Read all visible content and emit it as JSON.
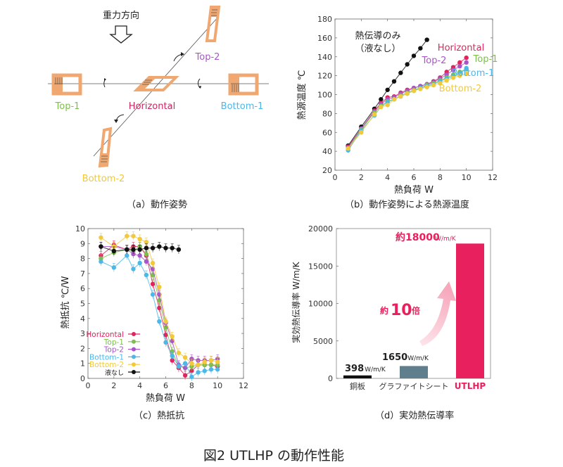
{
  "figure_title": "図2  UTLHP の動作性能",
  "colors": {
    "Horizontal": "#e0245e",
    "Top-1": "#7cc04a",
    "Top-2": "#a855c8",
    "Bottom-1": "#4cb8e8",
    "Bottom-2": "#f2c93a",
    "none": "#111111",
    "orange": "#f0a870",
    "bar_copper": "#111111",
    "bar_graphite": "#5f7f8c",
    "bar_utlhp": "#e8205e",
    "arrow": "#f7b8c8"
  },
  "panel_a": {
    "caption": "（a）動作姿勢",
    "gravity_label": "重力方向",
    "labels": {
      "top1": "Top-1",
      "top2": "Top-2",
      "horizontal": "Horizontal",
      "bottom1": "Bottom-1",
      "bottom2": "Bottom-2"
    }
  },
  "chart_data": [
    {
      "id": "b",
      "type": "line",
      "caption": "（b）動作姿勢による熱源温度",
      "xlabel": "熱負荷  W",
      "ylabel": "熱源温度  ℃",
      "xlim": [
        0,
        12
      ],
      "ylim": [
        20,
        180
      ],
      "xticks": [
        0,
        2,
        4,
        6,
        8,
        10,
        12
      ],
      "yticks": [
        20,
        40,
        60,
        80,
        100,
        120,
        140,
        160,
        180
      ],
      "annotation": [
        "熱伝導のみ",
        "（液なし）"
      ],
      "series": [
        {
          "name": "熱伝導のみ（液なし）",
          "key": "none",
          "x": [
            1,
            2,
            3,
            3.5,
            4,
            4.5,
            5,
            5.5,
            6,
            6.5,
            7
          ],
          "y": [
            46,
            66,
            85,
            95,
            105,
            114,
            123,
            132,
            141,
            149,
            158
          ]
        },
        {
          "name": "Horizontal",
          "key": "Horizontal",
          "x": [
            1,
            2,
            3,
            3.5,
            4,
            4.5,
            5,
            5.5,
            6,
            6.5,
            7,
            7.5,
            8,
            8.5,
            9,
            9.5,
            10
          ],
          "y": [
            45,
            64,
            83,
            91,
            97,
            98,
            102,
            105,
            107,
            109,
            111,
            114,
            118,
            124,
            129,
            134,
            139
          ]
        },
        {
          "name": "Top-2",
          "key": "Top-2",
          "x": [
            1,
            2,
            3,
            3.5,
            4,
            4.5,
            5,
            5.5,
            6,
            6.5,
            7,
            7.5,
            8,
            8.5,
            9,
            9.5,
            10
          ],
          "y": [
            44,
            64,
            82,
            90,
            95,
            97,
            101,
            104,
            107,
            109,
            111,
            113,
            117,
            121,
            126,
            130,
            134
          ]
        },
        {
          "name": "Top-1",
          "key": "Top-1",
          "x": [
            1,
            2,
            3,
            3.5,
            4,
            4.5,
            5,
            5.5,
            6,
            6.5,
            7,
            7.5,
            8,
            8.5,
            9,
            9.5,
            10
          ],
          "y": [
            43,
            63,
            81,
            88,
            93,
            95,
            99,
            102,
            105,
            107,
            110,
            112,
            115,
            118,
            121,
            124,
            127
          ]
        },
        {
          "name": "Bottom-1",
          "key": "Bottom-1",
          "x": [
            1,
            2,
            3,
            3.5,
            4,
            4.5,
            5,
            5.5,
            6,
            6.5,
            7,
            7.5,
            8,
            8.5,
            9,
            9.5,
            10
          ],
          "y": [
            41,
            62,
            78,
            87,
            92,
            95,
            98,
            101,
            104,
            107,
            109,
            111,
            114,
            117,
            119,
            122,
            128
          ]
        },
        {
          "name": "Bottom-2",
          "key": "Bottom-2",
          "x": [
            1,
            2,
            3,
            3.5,
            4,
            4.5,
            5,
            5.5,
            6,
            6.5,
            7,
            7.5,
            8,
            8.5,
            9,
            9.5,
            10
          ],
          "y": [
            43,
            60,
            79,
            87,
            89,
            95,
            98,
            101,
            104,
            106,
            108,
            110,
            112,
            115,
            118,
            120,
            122
          ]
        }
      ],
      "series_labels": [
        {
          "text": "Horizontal",
          "key": "Horizontal"
        },
        {
          "text": "Top-2",
          "key": "Top-2"
        },
        {
          "text": "Top-1",
          "key": "Top-1"
        },
        {
          "text": "Bottom-1",
          "key": "Bottom-1"
        },
        {
          "text": "Bottom-2",
          "key": "Bottom-2"
        }
      ]
    },
    {
      "id": "c",
      "type": "line",
      "caption": "（c）熱抵抗",
      "xlabel": "熱負荷  W",
      "ylabel": "熱抵抗  ℃/W",
      "xlim": [
        0,
        12
      ],
      "ylim": [
        0,
        10
      ],
      "xticks": [
        0,
        2,
        4,
        6,
        8,
        10,
        12
      ],
      "yticks": [
        0,
        1,
        2,
        3,
        4,
        5,
        6,
        7,
        8,
        9,
        10
      ],
      "legend_position": "bottom-left",
      "series": [
        {
          "name": "Horizontal",
          "key": "Horizontal",
          "x": [
            1,
            2,
            3,
            3.5,
            4,
            4.5,
            5,
            5.5,
            6,
            6.5,
            7,
            7.5,
            8,
            8.5,
            9,
            9.5,
            10
          ],
          "y": [
            8.2,
            8.9,
            8.6,
            8.8,
            8.8,
            8.2,
            6.3,
            4.7,
            2.9,
            1.2,
            0.7,
            0.2,
            0.5,
            0.9,
            0.9,
            0.9,
            0.8
          ]
        },
        {
          "name": "Top-1",
          "key": "Top-1",
          "x": [
            1,
            2,
            3,
            3.5,
            4,
            4.5,
            5,
            5.5,
            6,
            6.5,
            7,
            7.5,
            8,
            8.5,
            9,
            9.5,
            10
          ],
          "y": [
            8.0,
            8.4,
            8.6,
            8.5,
            8.8,
            8.3,
            6.9,
            5.2,
            3.4,
            1.8,
            0.8,
            0.7,
            0.8,
            0.9,
            0.9,
            0.9,
            0.9
          ]
        },
        {
          "name": "Top-2",
          "key": "Top-2",
          "x": [
            1,
            2,
            3,
            3.5,
            4,
            4.5,
            5,
            5.5,
            6,
            6.5,
            7,
            7.5,
            8,
            8.5,
            9,
            9.5,
            10
          ],
          "y": [
            8.8,
            8.8,
            8.6,
            8.3,
            8.2,
            7.8,
            7.3,
            5.6,
            3.7,
            2.5,
            0.9,
            0.7,
            1.3,
            1.2,
            1.2,
            1.2,
            1.3
          ]
        },
        {
          "name": "Bottom-1",
          "key": "Bottom-1",
          "x": [
            1,
            2,
            3,
            3.5,
            4,
            4.5,
            5,
            5.5,
            6,
            6.5,
            7,
            7.5,
            8,
            8.5,
            9,
            9.5,
            10
          ],
          "y": [
            7.8,
            7.4,
            8.2,
            7.3,
            7.7,
            6.9,
            5.6,
            3.8,
            2.4,
            1.5,
            0.8,
            1.0,
            0.1,
            0.4,
            0.5,
            0.6,
            0.6
          ]
        },
        {
          "name": "Bottom-2",
          "key": "Bottom-2",
          "x": [
            1,
            2,
            3,
            3.5,
            4,
            4.5,
            5,
            5.5,
            6,
            6.5,
            7,
            7.5,
            8,
            8.5,
            9,
            9.5,
            10
          ],
          "y": [
            9.4,
            8.8,
            9.5,
            9.5,
            9.3,
            9.1,
            7.7,
            6.1,
            3.8,
            2.8,
            1.7,
            1.4,
            1.0,
            0.9,
            1.1,
            1.2,
            1.1
          ]
        },
        {
          "name": "液なし",
          "key": "none",
          "x": [
            1,
            2,
            3,
            3.5,
            4,
            4.5,
            5,
            5.5,
            6,
            6.5,
            7
          ],
          "y": [
            8.8,
            8.5,
            8.6,
            8.6,
            8.6,
            8.7,
            8.7,
            8.8,
            8.7,
            8.7,
            8.6
          ]
        }
      ]
    },
    {
      "id": "d",
      "type": "bar",
      "caption": "（d）実効熱伝導率",
      "xlabel": "",
      "ylabel": "実効熱伝導率 W/m/K",
      "ylim": [
        0,
        20000
      ],
      "yticks": [
        0,
        5000,
        10000,
        15000,
        20000
      ],
      "categories": [
        "銅板",
        "グラファイトシート",
        "UTLHP"
      ],
      "values": [
        398,
        1650,
        18000
      ],
      "value_labels": [
        "398",
        "1650",
        "約18000"
      ],
      "unit": "W/m/K",
      "annotation": "約10倍",
      "annotation_prefix": "約",
      "annotation_num": "10",
      "annotation_suffix": "倍"
    }
  ]
}
